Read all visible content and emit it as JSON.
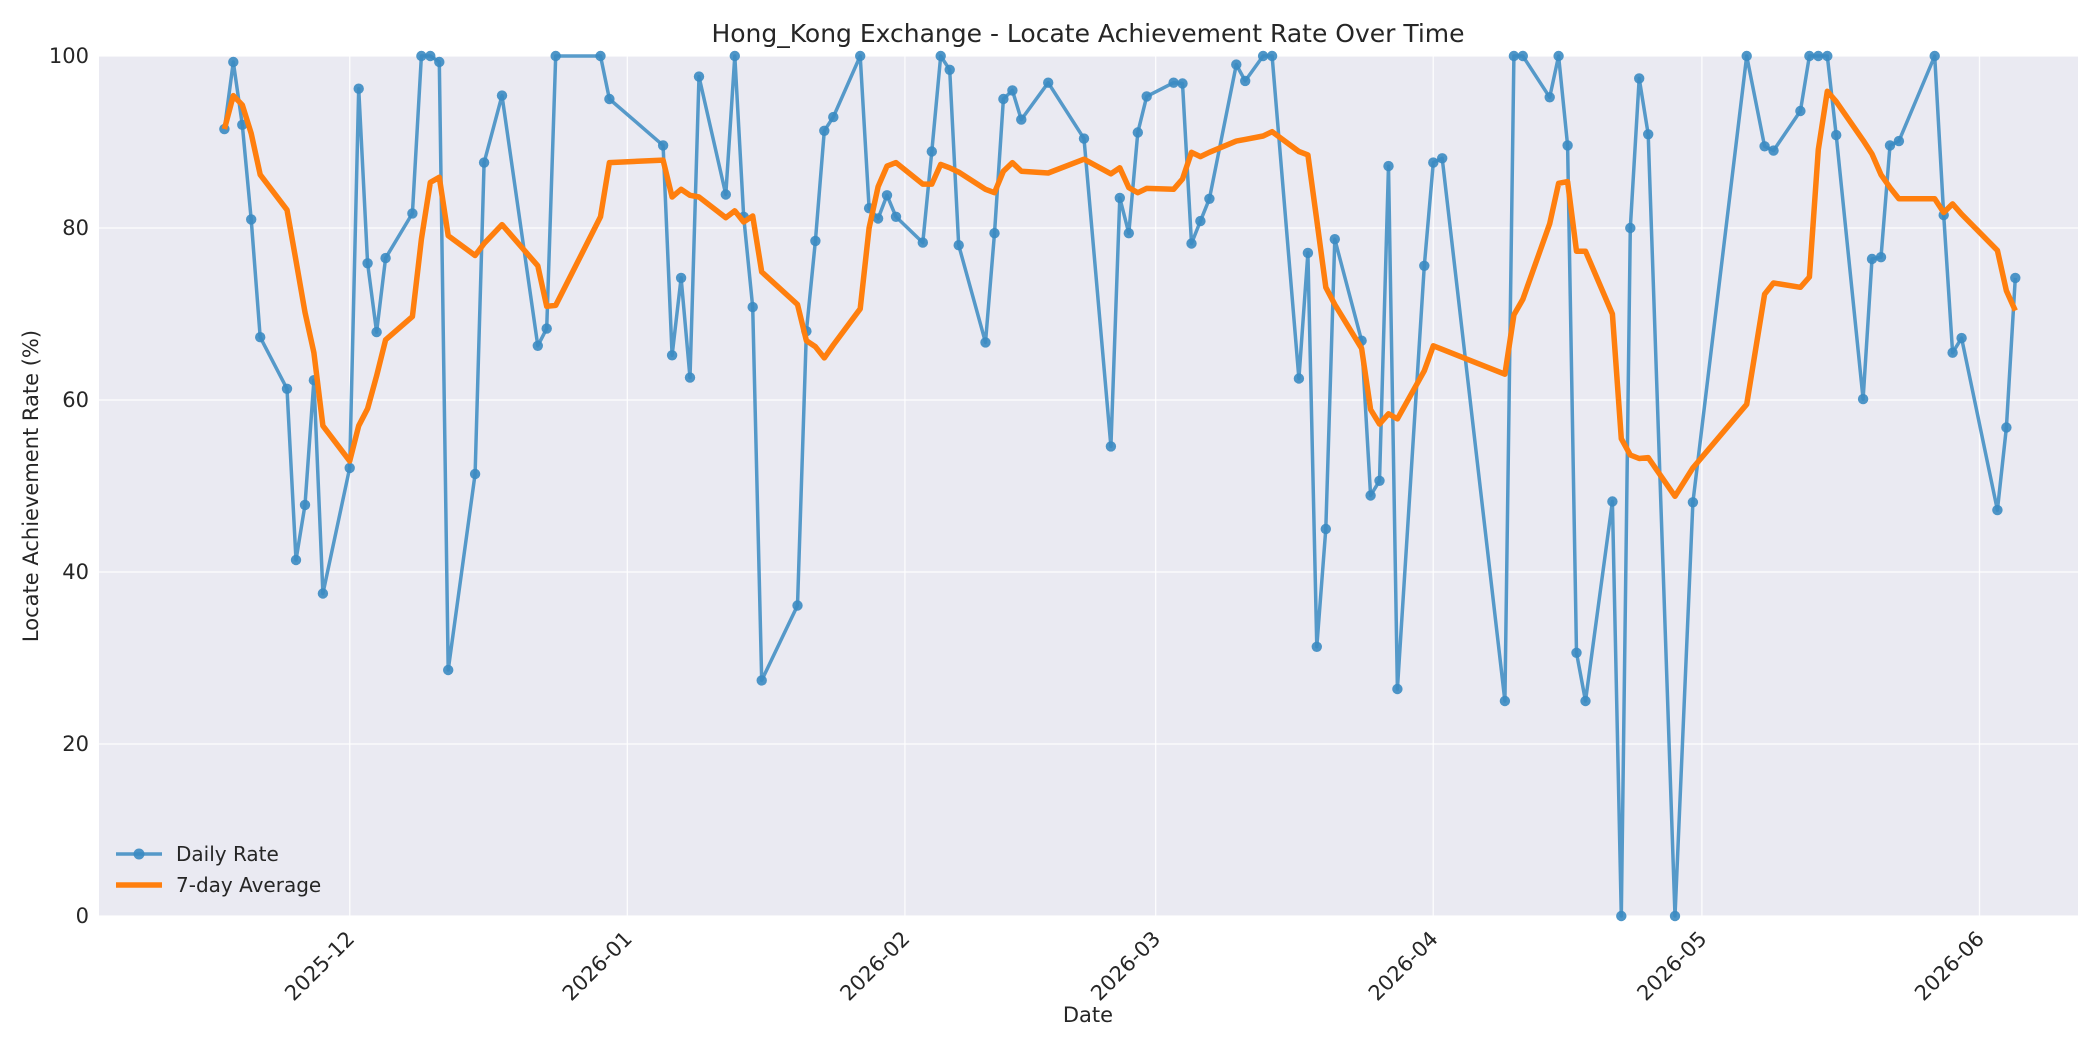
{
  "chart_data": {
    "type": "line",
    "title": "Hong_Kong Exchange - Locate Achievement Rate Over Time",
    "xlabel": "Date",
    "ylabel": "Locate Achievement Rate (%)",
    "xlim": [
      "2025-11-03",
      "2026-06-12"
    ],
    "ylim": [
      0,
      100
    ],
    "x_ticks": [
      "2025-12-01",
      "2026-01-01",
      "2026-02-01",
      "2026-03-01",
      "2026-04-01",
      "2026-05-01",
      "2026-06-01"
    ],
    "x_tick_labels": [
      "2025-12",
      "2026-01",
      "2026-02",
      "2026-03",
      "2026-04",
      "2026-05",
      "2026-06"
    ],
    "y_ticks": [
      0,
      20,
      40,
      60,
      80,
      100
    ],
    "y_tick_labels": [
      "0",
      "20",
      "40",
      "60",
      "80",
      "100"
    ],
    "grid": true,
    "legend_position": "lower-left",
    "series": [
      {
        "name": "Daily Rate",
        "color": "#3b8bc2",
        "markers": true,
        "points": [
          [
            "2025-11-17",
            91.5
          ],
          [
            "2025-11-18",
            99.3
          ],
          [
            "2025-11-19",
            92.0
          ],
          [
            "2025-11-20",
            81.0
          ],
          [
            "2025-11-21",
            67.3
          ],
          [
            "2025-11-24",
            61.3
          ],
          [
            "2025-11-25",
            41.4
          ],
          [
            "2025-11-26",
            47.8
          ],
          [
            "2025-11-27",
            62.3
          ],
          [
            "2025-11-28",
            37.5
          ],
          [
            "2025-12-01",
            52.1
          ],
          [
            "2025-12-02",
            96.2
          ],
          [
            "2025-12-03",
            75.9
          ],
          [
            "2025-12-04",
            67.9
          ],
          [
            "2025-12-05",
            76.5
          ],
          [
            "2025-12-08",
            81.7
          ],
          [
            "2025-12-09",
            100.0
          ],
          [
            "2025-12-10",
            100.0
          ],
          [
            "2025-12-11",
            99.3
          ],
          [
            "2025-12-12",
            28.6
          ],
          [
            "2025-12-15",
            51.4
          ],
          [
            "2025-12-16",
            87.6
          ],
          [
            "2025-12-18",
            95.4
          ],
          [
            "2025-12-22",
            66.3
          ],
          [
            "2025-12-23",
            68.3
          ],
          [
            "2025-12-24",
            100.0
          ],
          [
            "2025-12-29",
            100.0
          ],
          [
            "2025-12-30",
            95.0
          ],
          [
            "2026-01-05",
            89.6
          ],
          [
            "2026-01-06",
            65.2
          ],
          [
            "2026-01-07",
            74.2
          ],
          [
            "2026-01-08",
            62.6
          ],
          [
            "2026-01-09",
            97.6
          ],
          [
            "2026-01-12",
            83.9
          ],
          [
            "2026-01-13",
            100.0
          ],
          [
            "2026-01-14",
            81.3
          ],
          [
            "2026-01-15",
            70.8
          ],
          [
            "2026-01-16",
            27.4
          ],
          [
            "2026-01-20",
            36.1
          ],
          [
            "2026-01-21",
            68.0
          ],
          [
            "2026-01-22",
            78.5
          ],
          [
            "2026-01-23",
            91.3
          ],
          [
            "2026-01-24",
            92.9
          ],
          [
            "2026-01-27",
            100.0
          ],
          [
            "2026-01-28",
            82.3
          ],
          [
            "2026-01-29",
            81.1
          ],
          [
            "2026-01-30",
            83.8
          ],
          [
            "2026-01-31",
            81.3
          ],
          [
            "2026-02-03",
            78.3
          ],
          [
            "2026-02-04",
            88.9
          ],
          [
            "2026-02-05",
            100.0
          ],
          [
            "2026-02-06",
            98.4
          ],
          [
            "2026-02-07",
            78.0
          ],
          [
            "2026-02-10",
            66.7
          ],
          [
            "2026-02-11",
            79.4
          ],
          [
            "2026-02-12",
            95.0
          ],
          [
            "2026-02-13",
            96.0
          ],
          [
            "2026-02-14",
            92.6
          ],
          [
            "2026-02-17",
            96.9
          ],
          [
            "2026-02-21",
            90.4
          ],
          [
            "2026-02-24",
            54.6
          ],
          [
            "2026-02-25",
            83.5
          ],
          [
            "2026-02-26",
            79.4
          ],
          [
            "2026-02-27",
            91.1
          ],
          [
            "2026-02-28",
            95.3
          ],
          [
            "2026-03-03",
            96.9
          ],
          [
            "2026-03-04",
            96.8
          ],
          [
            "2026-03-05",
            78.2
          ],
          [
            "2026-03-06",
            80.8
          ],
          [
            "2026-03-07",
            83.4
          ],
          [
            "2026-03-10",
            99.0
          ],
          [
            "2026-03-11",
            97.1
          ],
          [
            "2026-03-13",
            100.0
          ],
          [
            "2026-03-14",
            100.0
          ],
          [
            "2026-03-17",
            62.5
          ],
          [
            "2026-03-18",
            77.1
          ],
          [
            "2026-03-19",
            31.3
          ],
          [
            "2026-03-20",
            45.0
          ],
          [
            "2026-03-21",
            78.7
          ],
          [
            "2026-03-24",
            66.9
          ],
          [
            "2026-03-25",
            48.9
          ],
          [
            "2026-03-26",
            50.6
          ],
          [
            "2026-03-27",
            87.2
          ],
          [
            "2026-03-28",
            26.4
          ],
          [
            "2026-03-31",
            75.6
          ],
          [
            "2026-04-01",
            87.6
          ],
          [
            "2026-04-02",
            88.1
          ],
          [
            "2026-04-09",
            25.0
          ],
          [
            "2026-04-10",
            100.0
          ],
          [
            "2026-04-11",
            100.0
          ],
          [
            "2026-04-14",
            95.2
          ],
          [
            "2026-04-15",
            100.0
          ],
          [
            "2026-04-16",
            89.6
          ],
          [
            "2026-04-17",
            30.6
          ],
          [
            "2026-04-18",
            25.0
          ],
          [
            "2026-04-21",
            48.2
          ],
          [
            "2026-04-22",
            0.0
          ],
          [
            "2026-04-23",
            80.0
          ],
          [
            "2026-04-24",
            97.4
          ],
          [
            "2026-04-25",
            90.9
          ],
          [
            "2026-04-28",
            0.0
          ],
          [
            "2026-04-30",
            48.1
          ],
          [
            "2026-05-06",
            100.0
          ],
          [
            "2026-05-08",
            89.5
          ],
          [
            "2026-05-09",
            89.0
          ],
          [
            "2026-05-12",
            93.6
          ],
          [
            "2026-05-13",
            100.0
          ],
          [
            "2026-05-14",
            100.0
          ],
          [
            "2026-05-15",
            100.0
          ],
          [
            "2026-05-16",
            90.8
          ],
          [
            "2026-05-19",
            60.1
          ],
          [
            "2026-05-20",
            76.4
          ],
          [
            "2026-05-21",
            76.6
          ],
          [
            "2026-05-22",
            89.6
          ],
          [
            "2026-05-23",
            90.1
          ],
          [
            "2026-05-27",
            100.0
          ],
          [
            "2026-05-28",
            81.5
          ],
          [
            "2026-05-29",
            65.5
          ],
          [
            "2026-05-30",
            67.2
          ],
          [
            "2026-06-03",
            47.2
          ],
          [
            "2026-06-04",
            56.8
          ],
          [
            "2026-06-05",
            74.2
          ]
        ]
      },
      {
        "name": "7-day Average",
        "color": "#ff7f0e",
        "markers": false,
        "points": [
          [
            "2025-11-17",
            91.5
          ],
          [
            "2025-11-18",
            95.4
          ],
          [
            "2025-11-19",
            94.3
          ],
          [
            "2025-11-20",
            91.0
          ],
          [
            "2025-11-21",
            86.2
          ],
          [
            "2025-11-24",
            82.1
          ],
          [
            "2025-11-25",
            76.2
          ],
          [
            "2025-11-26",
            70.2
          ],
          [
            "2025-11-27",
            65.5
          ],
          [
            "2025-11-28",
            57.0
          ],
          [
            "2025-12-01",
            52.9
          ],
          [
            "2025-12-02",
            57.0
          ],
          [
            "2025-12-03",
            59.0
          ],
          [
            "2025-12-04",
            62.8
          ],
          [
            "2025-12-05",
            67.0
          ],
          [
            "2025-12-08",
            69.7
          ],
          [
            "2025-12-09",
            78.7
          ],
          [
            "2025-12-10",
            85.3
          ],
          [
            "2025-12-11",
            85.9
          ],
          [
            "2025-12-12",
            79.1
          ],
          [
            "2025-12-15",
            76.8
          ],
          [
            "2025-12-16",
            78.2
          ],
          [
            "2025-12-18",
            80.4
          ],
          [
            "2025-12-22",
            75.6
          ],
          [
            "2025-12-23",
            70.9
          ],
          [
            "2025-12-24",
            71.0
          ],
          [
            "2025-12-29",
            81.3
          ],
          [
            "2025-12-30",
            87.6
          ],
          [
            "2026-01-05",
            87.9
          ],
          [
            "2026-01-06",
            83.6
          ],
          [
            "2026-01-07",
            84.5
          ],
          [
            "2026-01-08",
            83.8
          ],
          [
            "2026-01-09",
            83.6
          ],
          [
            "2026-01-12",
            81.2
          ],
          [
            "2026-01-13",
            82.0
          ],
          [
            "2026-01-14",
            80.7
          ],
          [
            "2026-01-15",
            81.4
          ],
          [
            "2026-01-16",
            74.9
          ],
          [
            "2026-01-20",
            71.1
          ],
          [
            "2026-01-21",
            66.9
          ],
          [
            "2026-01-22",
            66.2
          ],
          [
            "2026-01-23",
            64.9
          ],
          [
            "2026-01-24",
            66.4
          ],
          [
            "2026-01-27",
            70.6
          ],
          [
            "2026-01-28",
            80.0
          ],
          [
            "2026-01-29",
            84.8
          ],
          [
            "2026-01-30",
            87.2
          ],
          [
            "2026-01-31",
            87.6
          ],
          [
            "2026-02-03",
            85.1
          ],
          [
            "2026-02-04",
            85.1
          ],
          [
            "2026-02-05",
            87.4
          ],
          [
            "2026-02-06",
            87.0
          ],
          [
            "2026-02-07",
            86.5
          ],
          [
            "2026-02-10",
            84.5
          ],
          [
            "2026-02-11",
            84.1
          ],
          [
            "2026-02-12",
            86.6
          ],
          [
            "2026-02-13",
            87.6
          ],
          [
            "2026-02-14",
            86.6
          ],
          [
            "2026-02-17",
            86.4
          ],
          [
            "2026-02-21",
            88.0
          ],
          [
            "2026-02-24",
            86.3
          ],
          [
            "2026-02-25",
            87.0
          ],
          [
            "2026-02-26",
            84.7
          ],
          [
            "2026-02-27",
            84.1
          ],
          [
            "2026-02-28",
            84.6
          ],
          [
            "2026-03-03",
            84.5
          ],
          [
            "2026-03-04",
            85.7
          ],
          [
            "2026-03-05",
            88.8
          ],
          [
            "2026-03-06",
            88.3
          ],
          [
            "2026-03-07",
            88.8
          ],
          [
            "2026-03-10",
            90.1
          ],
          [
            "2026-03-11",
            90.3
          ],
          [
            "2026-03-13",
            90.7
          ],
          [
            "2026-03-14",
            91.2
          ],
          [
            "2026-03-17",
            88.9
          ],
          [
            "2026-03-18",
            88.5
          ],
          [
            "2026-03-19",
            80.9
          ],
          [
            "2026-03-20",
            73.1
          ],
          [
            "2026-03-21",
            71.1
          ],
          [
            "2026-03-24",
            66.0
          ],
          [
            "2026-03-25",
            58.9
          ],
          [
            "2026-03-26",
            57.2
          ],
          [
            "2026-03-27",
            58.4
          ],
          [
            "2026-03-28",
            57.8
          ],
          [
            "2026-03-31",
            63.4
          ],
          [
            "2026-04-01",
            66.3
          ],
          [
            "2026-04-02",
            65.9
          ],
          [
            "2026-04-09",
            63.0
          ],
          [
            "2026-04-10",
            69.9
          ],
          [
            "2026-04-11",
            71.7
          ],
          [
            "2026-04-14",
            80.5
          ],
          [
            "2026-04-15",
            85.2
          ],
          [
            "2026-04-16",
            85.4
          ],
          [
            "2026-04-17",
            77.3
          ],
          [
            "2026-04-18",
            77.3
          ],
          [
            "2026-04-21",
            70.0
          ],
          [
            "2026-04-22",
            55.5
          ],
          [
            "2026-04-23",
            53.6
          ],
          [
            "2026-04-24",
            53.2
          ],
          [
            "2026-04-25",
            53.3
          ],
          [
            "2026-04-28",
            48.8
          ],
          [
            "2026-04-30",
            52.1
          ],
          [
            "2026-05-06",
            59.5
          ],
          [
            "2026-05-08",
            72.3
          ],
          [
            "2026-05-09",
            73.6
          ],
          [
            "2026-05-12",
            73.1
          ],
          [
            "2026-05-13",
            74.3
          ],
          [
            "2026-05-14",
            89.1
          ],
          [
            "2026-05-15",
            95.9
          ],
          [
            "2026-05-16",
            94.7
          ],
          [
            "2026-05-19",
            90.2
          ],
          [
            "2026-05-20",
            88.6
          ],
          [
            "2026-05-21",
            86.2
          ],
          [
            "2026-05-22",
            84.7
          ],
          [
            "2026-05-23",
            83.4
          ],
          [
            "2026-05-27",
            83.4
          ],
          [
            "2026-05-28",
            81.8
          ],
          [
            "2026-05-29",
            82.8
          ],
          [
            "2026-05-30",
            81.6
          ],
          [
            "2026-06-03",
            77.4
          ],
          [
            "2026-06-04",
            72.7
          ],
          [
            "2026-06-05",
            70.4
          ]
        ]
      }
    ]
  }
}
